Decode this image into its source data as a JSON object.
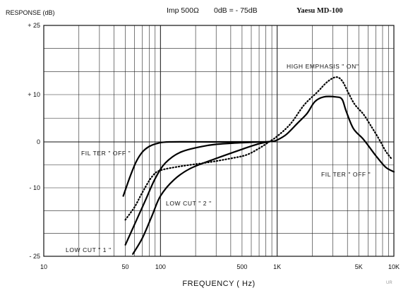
{
  "header": {
    "y_unit_label": "RESPONSE  (dB)",
    "impedance": "Imp 500Ω",
    "reference": "0dB =  - 75dB",
    "model": "Yaesu MD-100"
  },
  "watermark": "UR",
  "chart_data": {
    "type": "line",
    "xlabel": "FREQUENCY  ( Hz)",
    "ylabel": "RESPONSE  (dB)",
    "x_scale": "log",
    "xlim": [
      10,
      10000
    ],
    "ylim": [
      -25,
      25
    ],
    "grid": true,
    "x_ticks": [
      {
        "value": 10,
        "label": "10"
      },
      {
        "value": 50,
        "label": "50"
      },
      {
        "value": 100,
        "label": "100"
      },
      {
        "value": 500,
        "label": "500"
      },
      {
        "value": 1000,
        "label": "1K"
      },
      {
        "value": 5000,
        "label": "5K"
      },
      {
        "value": 10000,
        "label": "10K"
      }
    ],
    "y_ticks": [
      {
        "value": 25,
        "label": "+ 25"
      },
      {
        "value": 10,
        "label": "+ 10"
      },
      {
        "value": 0,
        "label": "0"
      },
      {
        "value": -10,
        "label": "- 10"
      },
      {
        "value": -25,
        "label": "- 25"
      }
    ],
    "series": [
      {
        "id": "filter-off",
        "style": "solid",
        "points": [
          [
            48,
            -11.8
          ],
          [
            55,
            -7.5
          ],
          [
            62,
            -4.3
          ],
          [
            70,
            -2.2
          ],
          [
            80,
            -1.0
          ],
          [
            95,
            -0.3
          ],
          [
            120,
            0
          ],
          [
            300,
            0
          ],
          [
            700,
            0
          ],
          [
            900,
            0.1
          ],
          [
            1000,
            0.4
          ],
          [
            1200,
            1.6
          ],
          [
            1500,
            4.0
          ],
          [
            1800,
            6.0
          ],
          [
            2100,
            8.5
          ],
          [
            2500,
            9.5
          ],
          [
            3200,
            9.5
          ],
          [
            3600,
            9.0
          ],
          [
            3900,
            6.5
          ],
          [
            4500,
            2.8
          ],
          [
            5500,
            0.5
          ],
          [
            7000,
            -3.0
          ],
          [
            8500,
            -5.5
          ],
          [
            10000,
            -6.5
          ]
        ]
      },
      {
        "id": "high-emphasis-on",
        "style": "dotted",
        "points": [
          [
            50,
            -17.0
          ],
          [
            60,
            -14.2
          ],
          [
            70,
            -11.0
          ],
          [
            85,
            -7.5
          ],
          [
            100,
            -6.2
          ],
          [
            150,
            -5.3
          ],
          [
            250,
            -4.5
          ],
          [
            400,
            -3.6
          ],
          [
            550,
            -2.8
          ],
          [
            700,
            -1.4
          ],
          [
            850,
            0
          ],
          [
            1000,
            1.2
          ],
          [
            1300,
            3.8
          ],
          [
            1700,
            7.8
          ],
          [
            2200,
            10.5
          ],
          [
            2700,
            12.8
          ],
          [
            3200,
            13.8
          ],
          [
            3600,
            13.0
          ],
          [
            4000,
            10.8
          ],
          [
            4600,
            8.0
          ],
          [
            5500,
            5.8
          ],
          [
            6500,
            3.0
          ],
          [
            7500,
            0.5
          ],
          [
            8500,
            -2.0
          ],
          [
            9500,
            -3.6
          ]
        ]
      },
      {
        "id": "low-cut-1",
        "style": "solid",
        "points": [
          [
            50,
            -22.5
          ],
          [
            60,
            -18.0
          ],
          [
            75,
            -12.5
          ],
          [
            90,
            -8.0
          ],
          [
            110,
            -4.6
          ],
          [
            150,
            -2.2
          ],
          [
            250,
            -0.8
          ],
          [
            400,
            -0.3
          ],
          [
            700,
            0
          ]
        ]
      },
      {
        "id": "low-cut-2",
        "style": "solid",
        "points": [
          [
            58,
            -24.5
          ],
          [
            70,
            -21.0
          ],
          [
            85,
            -16.0
          ],
          [
            100,
            -11.8
          ],
          [
            130,
            -8.3
          ],
          [
            180,
            -5.8
          ],
          [
            300,
            -3.6
          ],
          [
            500,
            -1.6
          ],
          [
            700,
            -0.4
          ],
          [
            850,
            0
          ]
        ]
      }
    ],
    "annotations": [
      {
        "id": "label-filter-off-left",
        "text": "FIL TER  \" OFF \"",
        "target": "filter-off"
      },
      {
        "id": "label-high-emphasis",
        "text": "HIGH EMPHASIS  \" ON\"",
        "target": "high-emphasis-on"
      },
      {
        "id": "label-filter-off-right",
        "text": "FIL TER  \" OFF \"",
        "target": "filter-off"
      },
      {
        "id": "label-low-cut-2",
        "text": "LOW CUT  \" 2 \"",
        "target": "low-cut-2"
      },
      {
        "id": "label-low-cut-1",
        "text": "LOW CUT  \" 1 \"",
        "target": "low-cut-1"
      }
    ]
  }
}
